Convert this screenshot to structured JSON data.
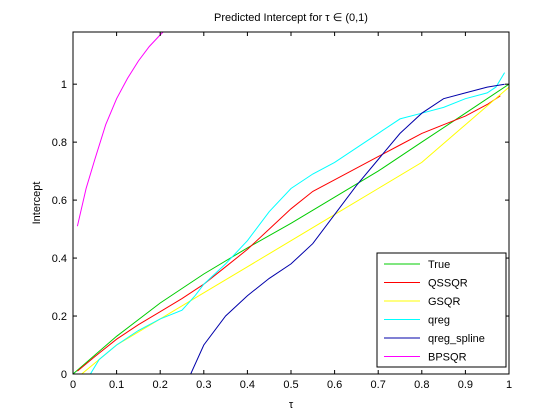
{
  "chart_data": {
    "type": "line",
    "title": "Predicted Intercept for τ ∈ (0,1)",
    "xlabel": "τ",
    "ylabel": "Intercept",
    "xlim": [
      0,
      1
    ],
    "ylim": [
      0,
      1.18
    ],
    "xticks": [
      "0",
      "0.1",
      "0.2",
      "0.3",
      "0.4",
      "0.5",
      "0.6",
      "0.7",
      "0.8",
      "0.9",
      "1"
    ],
    "yticks": [
      "0",
      "0.2",
      "0.4",
      "0.6",
      "0.8",
      "1"
    ],
    "grid": false,
    "legend_position": "bottom-right",
    "series": [
      {
        "name": "True",
        "color": "#00cc00",
        "x": [
          0.0,
          0.1,
          0.2,
          0.3,
          0.4,
          0.5,
          0.6,
          0.7,
          0.8,
          0.9,
          1.0
        ],
        "y": [
          0.0,
          0.13,
          0.245,
          0.345,
          0.435,
          0.52,
          0.61,
          0.7,
          0.8,
          0.9,
          1.0
        ]
      },
      {
        "name": "QSSQR",
        "color": "#ff0000",
        "x": [
          0.01,
          0.05,
          0.1,
          0.15,
          0.2,
          0.25,
          0.3,
          0.35,
          0.4,
          0.45,
          0.5,
          0.55,
          0.6,
          0.65,
          0.7,
          0.75,
          0.8,
          0.85,
          0.9,
          0.95,
          0.98
        ],
        "y": [
          0.01,
          0.06,
          0.12,
          0.17,
          0.215,
          0.26,
          0.31,
          0.37,
          0.43,
          0.5,
          0.57,
          0.63,
          0.67,
          0.71,
          0.75,
          0.79,
          0.83,
          0.86,
          0.89,
          0.93,
          0.96
        ]
      },
      {
        "name": "GSQR",
        "color": "#ffff00",
        "x": [
          0.02,
          0.1,
          0.2,
          0.3,
          0.4,
          0.5,
          0.6,
          0.7,
          0.8,
          0.9,
          1.0
        ],
        "y": [
          0.0,
          0.1,
          0.19,
          0.28,
          0.37,
          0.46,
          0.55,
          0.64,
          0.73,
          0.86,
          0.99
        ]
      },
      {
        "name": "qreg",
        "color": "#00ffff",
        "x": [
          0.04,
          0.06,
          0.1,
          0.15,
          0.2,
          0.25,
          0.28,
          0.3,
          0.35,
          0.4,
          0.45,
          0.5,
          0.55,
          0.6,
          0.65,
          0.7,
          0.75,
          0.8,
          0.85,
          0.9,
          0.95,
          0.97,
          0.99
        ],
        "y": [
          0.0,
          0.05,
          0.1,
          0.15,
          0.19,
          0.22,
          0.27,
          0.31,
          0.38,
          0.46,
          0.56,
          0.64,
          0.69,
          0.73,
          0.78,
          0.83,
          0.88,
          0.9,
          0.92,
          0.95,
          0.97,
          0.99,
          1.04
        ]
      },
      {
        "name": "qreg_spline",
        "color": "#0000aa",
        "x": [
          0.27,
          0.3,
          0.35,
          0.4,
          0.45,
          0.5,
          0.55,
          0.6,
          0.65,
          0.7,
          0.75,
          0.8,
          0.85,
          0.9,
          0.95,
          0.99
        ],
        "y": [
          0.0,
          0.1,
          0.2,
          0.27,
          0.33,
          0.38,
          0.45,
          0.55,
          0.65,
          0.74,
          0.83,
          0.9,
          0.95,
          0.97,
          0.99,
          1.0
        ]
      },
      {
        "name": "BPSQR",
        "color": "#ff00ff",
        "x": [
          0.01,
          0.03,
          0.05,
          0.075,
          0.1,
          0.125,
          0.15,
          0.175,
          0.2,
          0.21
        ],
        "y": [
          0.51,
          0.64,
          0.74,
          0.86,
          0.95,
          1.02,
          1.08,
          1.13,
          1.17,
          1.185
        ]
      }
    ]
  }
}
